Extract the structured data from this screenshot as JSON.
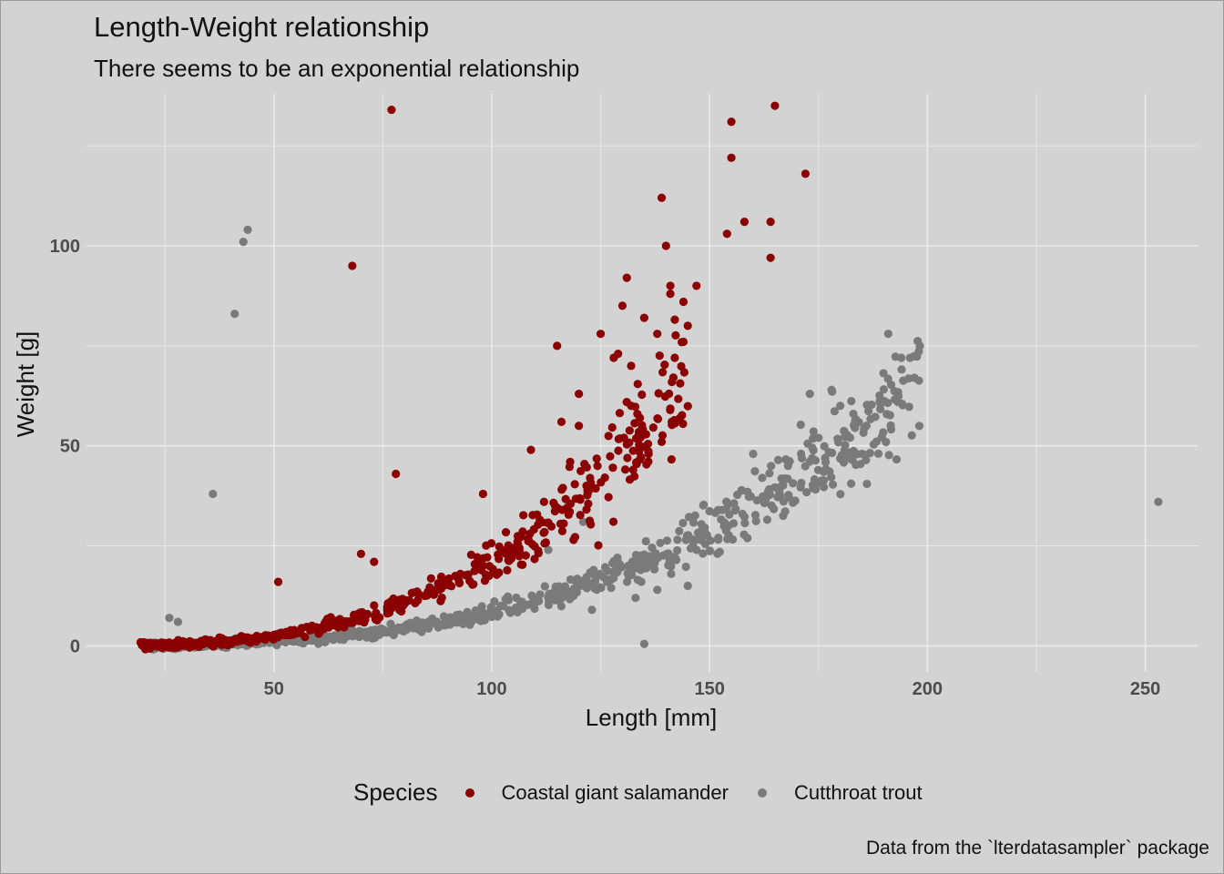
{
  "title": "Length-Weight relationship",
  "subtitle": "There seems to be an exponential relationship",
  "caption": "Data from the `lterdatasampler` package",
  "chart_data": {
    "type": "scatter",
    "title": "Length-Weight relationship",
    "subtitle": "There seems to be an exponential relationship",
    "xlabel": "Length [mm]",
    "ylabel": "Weight [g]",
    "xlim": [
      7,
      262
    ],
    "ylim": [
      -6.5,
      138
    ],
    "xticks": [
      50,
      100,
      150,
      200,
      250
    ],
    "yticks": [
      0,
      50,
      100
    ],
    "grid": true,
    "legend_title": "Species",
    "legend_position": "bottom",
    "colors": {
      "salamander": "#8b0000",
      "trout": "#7a7a7a",
      "background": "#d3d3d3",
      "grid": "#ebebeb"
    },
    "series": [
      {
        "name": "Coastal giant salamander",
        "color": "#8b0000",
        "curve": {
          "a": 1.68e-05,
          "b": 3.05,
          "x_min": 20,
          "x_max": 145,
          "n": 560
        },
        "outliers": [
          [
            77,
            134
          ],
          [
            68,
            95
          ],
          [
            78,
            43
          ],
          [
            139,
            112
          ],
          [
            155,
            131
          ],
          [
            165,
            135
          ],
          [
            155,
            122
          ],
          [
            172,
            118
          ],
          [
            154,
            103
          ],
          [
            158,
            106
          ],
          [
            164,
            106
          ],
          [
            164,
            97
          ],
          [
            140,
            100
          ],
          [
            147,
            90
          ],
          [
            144,
            86
          ],
          [
            141,
            90
          ],
          [
            131,
            92
          ],
          [
            115,
            75
          ],
          [
            129,
            73
          ],
          [
            125,
            78
          ],
          [
            145,
            80
          ],
          [
            142,
            72
          ],
          [
            144,
            76
          ],
          [
            130,
            85
          ],
          [
            135,
            82
          ],
          [
            138,
            78
          ],
          [
            141,
            88
          ],
          [
            51,
            16
          ],
          [
            70,
            23
          ],
          [
            73,
            21
          ],
          [
            98,
            38
          ],
          [
            120,
            55
          ],
          [
            109,
            49
          ],
          [
            116,
            56
          ],
          [
            120,
            63
          ],
          [
            132,
            60
          ],
          [
            134,
            57
          ],
          [
            136,
            48
          ],
          [
            139,
            51
          ],
          [
            128,
            72
          ],
          [
            132,
            70
          ],
          [
            112,
            36
          ],
          [
            118,
            46
          ],
          [
            122,
            38
          ]
        ]
      },
      {
        "name": "Cutthroat trout",
        "color": "#7a7a7a",
        "curve": {
          "a": 8.5e-06,
          "b": 3.0,
          "x_min": 22,
          "x_max": 198,
          "n": 820
        },
        "outliers": [
          [
            44,
            104
          ],
          [
            43,
            101
          ],
          [
            41,
            83
          ],
          [
            36,
            38
          ],
          [
            253,
            36
          ],
          [
            135,
            0.5
          ],
          [
            123,
            9
          ],
          [
            133,
            12
          ],
          [
            138,
            14
          ],
          [
            145,
            15
          ],
          [
            152,
            27
          ],
          [
            180,
            60
          ],
          [
            183,
            58
          ],
          [
            186,
            55
          ],
          [
            178,
            64
          ],
          [
            191,
            78
          ],
          [
            194,
            72
          ],
          [
            197,
            67
          ],
          [
            189,
            61
          ],
          [
            181,
            49
          ],
          [
            185,
            48
          ],
          [
            171,
            48
          ],
          [
            175,
            52
          ],
          [
            168,
            45
          ],
          [
            160,
            48
          ],
          [
            173,
            63
          ],
          [
            196,
            72
          ],
          [
            121,
            31
          ],
          [
            113,
            24
          ],
          [
            28,
            6
          ],
          [
            26,
            7
          ]
        ]
      }
    ]
  }
}
